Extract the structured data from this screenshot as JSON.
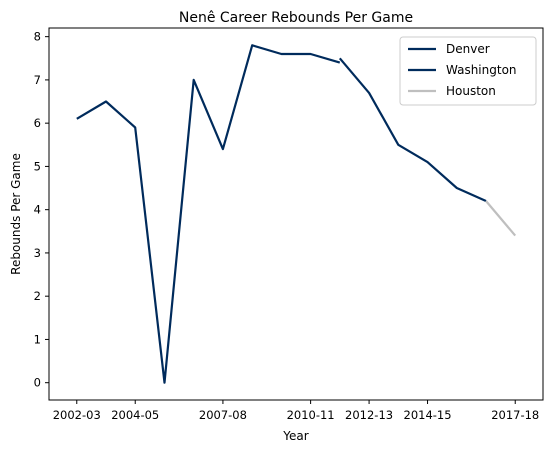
{
  "chart_data": {
    "type": "line",
    "title": "Nenê Career Rebounds Per Game",
    "xlabel": "Year",
    "ylabel": "Rebounds Per Game",
    "ylim": [
      -0.4,
      8.2
    ],
    "yticks": [
      "0",
      "1",
      "2",
      "3",
      "4",
      "5",
      "6",
      "7",
      "8"
    ],
    "xticks": [
      "2002-03",
      "2004-05",
      "2007-08",
      "2010-11",
      "2012-13",
      "2014-15",
      "2017-18"
    ],
    "legend_position": "top-right",
    "grid": false,
    "series": [
      {
        "name": "Denver",
        "color": "#002b5c",
        "points": [
          {
            "x": "2002-03",
            "y": 6.1
          },
          {
            "x": "2003-04",
            "y": 6.5
          },
          {
            "x": "2004-05",
            "y": 5.9
          },
          {
            "x": "2005-06",
            "y": 0.0
          },
          {
            "x": "2006-07",
            "y": 7.0
          },
          {
            "x": "2007-08",
            "y": 5.4
          },
          {
            "x": "2008-09",
            "y": 7.8
          },
          {
            "x": "2009-10",
            "y": 7.6
          },
          {
            "x": "2010-11",
            "y": 7.6
          },
          {
            "x": "2011-12",
            "y": 7.4
          }
        ]
      },
      {
        "name": "Washington",
        "color": "#002b5c",
        "points": [
          {
            "x": "2011-12",
            "y": 7.5
          },
          {
            "x": "2012-13",
            "y": 6.7
          },
          {
            "x": "2013-14",
            "y": 5.5
          },
          {
            "x": "2014-15",
            "y": 5.1
          },
          {
            "x": "2015-16",
            "y": 4.5
          },
          {
            "x": "2016-17",
            "y": 4.2
          }
        ]
      },
      {
        "name": "Houston",
        "color": "#bfbfbf",
        "points": [
          {
            "x": "2016-17",
            "y": 4.2
          },
          {
            "x": "2017-18",
            "y": 3.4
          }
        ]
      }
    ]
  }
}
